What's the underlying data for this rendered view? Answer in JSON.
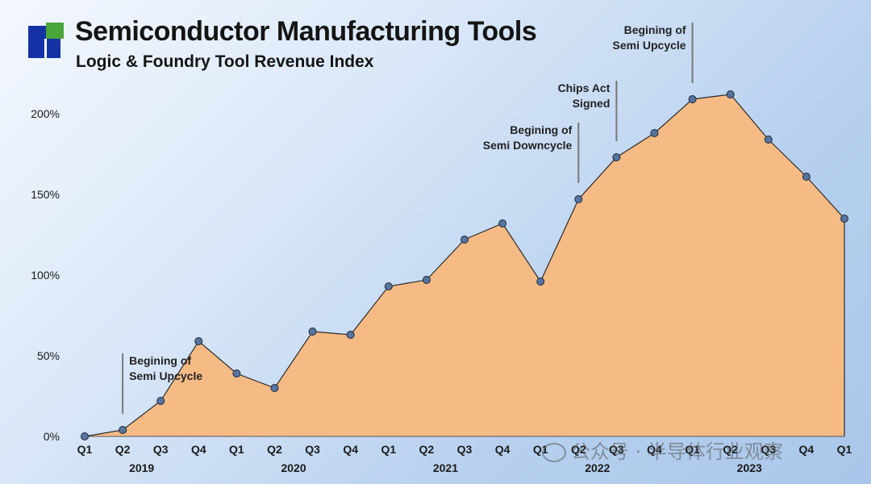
{
  "header": {
    "title": "Semiconductor Manufacturing Tools",
    "subtitle": "Logic & Foundry Tool Revenue Index"
  },
  "watermark": "公众号 · 半导体行业观察",
  "colors": {
    "area_fill": "#f6bb85",
    "line": "#2b2b2b",
    "point": "#56749f",
    "logo_blue": "#1432a6",
    "logo_green": "#4aa53a"
  },
  "chart_data": {
    "type": "area",
    "title": "Logic & Foundry Tool Revenue Index",
    "ylabel": "",
    "xlabel": "",
    "ylim": [
      0,
      2.2
    ],
    "y_ticks": [
      0,
      0.5,
      1.0,
      1.5,
      2.0
    ],
    "y_tick_labels": [
      "0%",
      "50%",
      "100%",
      "150%",
      "200%"
    ],
    "x": [
      "Q1",
      "Q2",
      "Q3",
      "Q4",
      "Q1",
      "Q2",
      "Q3",
      "Q4",
      "Q1",
      "Q2",
      "Q3",
      "Q4",
      "Q1",
      "Q2",
      "Q3",
      "Q4",
      "Q1",
      "Q2",
      "Q3",
      "Q4",
      "Q1"
    ],
    "years": [
      {
        "label": "2019",
        "start": 0,
        "end": 3
      },
      {
        "label": "2020",
        "start": 4,
        "end": 7
      },
      {
        "label": "2021",
        "start": 8,
        "end": 11
      },
      {
        "label": "2022",
        "start": 12,
        "end": 15
      },
      {
        "label": "2023",
        "start": 16,
        "end": 19
      }
    ],
    "values": [
      0.0,
      0.04,
      0.22,
      0.59,
      0.39,
      0.3,
      0.65,
      0.63,
      0.93,
      0.97,
      1.22,
      1.32,
      0.96,
      1.47,
      1.73,
      1.88,
      2.09,
      2.12,
      1.84,
      1.61,
      1.35
    ],
    "annotations": [
      {
        "text": "Begining of\nSemi Upcycle",
        "index": 1
      },
      {
        "text": "Begining of\nSemi Downcycle",
        "index": 13
      },
      {
        "text": "Chips Act\nSigned",
        "index": 14
      },
      {
        "text": "Begining of\nSemi Upcycle",
        "index": 16
      }
    ]
  }
}
